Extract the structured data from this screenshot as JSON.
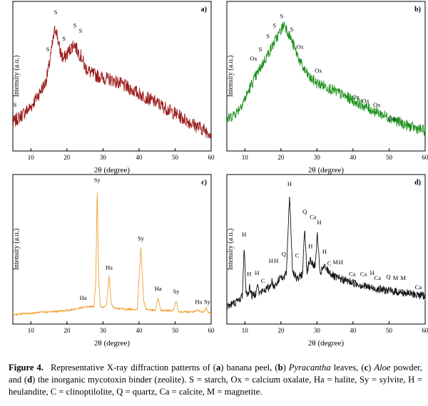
{
  "figure": {
    "caption": {
      "figure_label": "Figure 4.",
      "intro": "Representative X-ray diffraction patterns of (",
      "a": "a",
      "t1": ") banana peel, (",
      "b": "b",
      "t2": ") ",
      "pyr": "Pyracantha",
      "t3": " leaves, (",
      "c": "c",
      "t4": ") ",
      "aloe": "Aloe",
      "t5": " powder, and (",
      "d": "d",
      "t6": ") the inorganic mycotoxin binder (zeolite). S = starch, Ox = calcium oxalate, Ha = halite, Sy = sylvite, H = heulandite, C = clinoptilolite, Q = quartz, Ca = calcite, M = magnetite."
    }
  },
  "chart_data": [
    {
      "type": "line",
      "panel_label": "a)",
      "color": "#9b1b1b",
      "xlabel": "2θ (degree)",
      "ylabel": "Intensity (a.u.)",
      "xlim": [
        5,
        60
      ],
      "ylim": [
        0,
        100
      ],
      "xticks": [
        10,
        20,
        30,
        40,
        50,
        60
      ],
      "noise": 5,
      "series": [
        {
          "name": "banana peel",
          "x": [
            5,
            10,
            14,
            15,
            16,
            16.8,
            17.2,
            18,
            19,
            20,
            21,
            22,
            23,
            24,
            25,
            27,
            30,
            33,
            36,
            40,
            45,
            50,
            55,
            60
          ],
          "y": [
            18,
            30,
            48,
            60,
            78,
            90,
            86,
            73,
            66,
            70,
            74,
            78,
            72,
            68,
            60,
            55,
            52,
            50,
            46,
            40,
            33,
            25,
            17,
            10
          ]
        }
      ],
      "annotations": [
        {
          "text": "S",
          "x": 5.6,
          "y": 30
        },
        {
          "text": "S",
          "x": 14.7,
          "y": 72
        },
        {
          "text": "S",
          "x": 16.9,
          "y": 100
        },
        {
          "text": "S",
          "x": 19.2,
          "y": 80
        },
        {
          "text": "S",
          "x": 22.2,
          "y": 90
        },
        {
          "text": "S",
          "x": 23.8,
          "y": 86
        }
      ]
    },
    {
      "type": "line",
      "panel_label": "b)",
      "color": "#1a8f1a",
      "xlabel": "2θ (degree)",
      "ylabel": "Intensity (a.u.)",
      "xlim": [
        5,
        60
      ],
      "ylim": [
        0,
        100
      ],
      "xticks": [
        10,
        20,
        30,
        40,
        50,
        60
      ],
      "noise": 4,
      "series": [
        {
          "name": "Pyracantha leaves",
          "x": [
            5,
            8,
            10,
            12,
            14,
            16,
            18,
            20,
            21,
            22,
            23,
            24,
            26,
            28,
            30,
            32,
            35,
            40,
            45,
            50,
            55,
            60
          ],
          "y": [
            20,
            27,
            36,
            48,
            58,
            68,
            78,
            88,
            93,
            86,
            80,
            73,
            60,
            52,
            48,
            46,
            42,
            35,
            28,
            22,
            16,
            12
          ]
        }
      ],
      "annotations": [
        {
          "text": "Ox",
          "x": 12.4,
          "y": 65
        },
        {
          "text": "S",
          "x": 14.3,
          "y": 72
        },
        {
          "text": "S",
          "x": 16.4,
          "y": 82
        },
        {
          "text": "S",
          "x": 18.2,
          "y": 90
        },
        {
          "text": "S",
          "x": 20.2,
          "y": 97
        },
        {
          "text": "S",
          "x": 23.0,
          "y": 87
        },
        {
          "text": "Ox",
          "x": 25.3,
          "y": 74
        },
        {
          "text": "Ox",
          "x": 30.4,
          "y": 56
        },
        {
          "text": "Ox",
          "x": 40.8,
          "y": 36
        },
        {
          "text": "Ox",
          "x": 43.5,
          "y": 33
        },
        {
          "text": "Ox",
          "x": 46.6,
          "y": 30
        },
        {
          "text": "Ox",
          "x": 50.8,
          "y": 20
        }
      ]
    },
    {
      "type": "line",
      "panel_label": "c)",
      "color": "#f0a030",
      "xlabel": "2θ (degree)",
      "ylabel": "Intensity (a.u.)",
      "xlim": [
        5,
        60
      ],
      "ylim": [
        0,
        100
      ],
      "xticks": [
        10,
        20,
        30,
        40,
        50,
        60
      ],
      "noise": 0.8,
      "series": [
        {
          "name": "Aloe powder",
          "x": [
            5,
            10,
            15,
            20,
            24,
            26,
            27.5,
            28,
            28.4,
            28.8,
            29.3,
            30,
            31,
            31.7,
            32.3,
            33,
            36,
            39.5,
            40.5,
            41.3,
            42,
            44.5,
            45.3,
            46,
            49.5,
            50.3,
            51,
            55,
            56.5,
            57,
            58,
            58.7,
            59.2,
            60
          ],
          "y": [
            4,
            5,
            6,
            7,
            9,
            10,
            10,
            28,
            100,
            30,
            10,
            9,
            12,
            33,
            12,
            9,
            8,
            8,
            55,
            14,
            8,
            7,
            17,
            7,
            7,
            15,
            6,
            6,
            7,
            6,
            6,
            9,
            6,
            5
          ]
        }
      ],
      "annotations": [
        {
          "text": "Sy",
          "x": 28.4,
          "y": 104
        },
        {
          "text": "Ha",
          "x": 31.7,
          "y": 38
        },
        {
          "text": "Sy",
          "x": 40.5,
          "y": 60
        },
        {
          "text": "Ha",
          "x": 45.3,
          "y": 22
        },
        {
          "text": "Sy",
          "x": 50.3,
          "y": 20
        },
        {
          "text": "Ha",
          "x": 56.5,
          "y": 12
        },
        {
          "text": "Sy",
          "x": 58.9,
          "y": 12
        },
        {
          "text": "Ha",
          "x": 24.5,
          "y": 15
        }
      ]
    },
    {
      "type": "line",
      "panel_label": "d)",
      "color": "#111111",
      "xlabel": "2θ (degree)",
      "ylabel": "Intensity (a.u.)",
      "xlim": [
        5,
        60
      ],
      "ylim": [
        0,
        100
      ],
      "xticks": [
        10,
        20,
        30,
        40,
        50,
        60
      ],
      "noise": 3,
      "series": [
        {
          "name": "zeolite",
          "x": [
            5,
            8,
            9.3,
            9.8,
            10.3,
            11,
            11.2,
            12,
            13,
            13.4,
            14,
            17,
            17.4,
            18,
            19.5,
            19.9,
            20.5,
            21.5,
            22.4,
            23.2,
            24.5,
            26,
            26.6,
            27.2,
            28,
            29.5,
            30.1,
            30.8,
            32,
            35,
            40,
            45,
            50,
            55,
            60
          ],
          "y": [
            10,
            14,
            18,
            55,
            22,
            18,
            26,
            18,
            20,
            28,
            20,
            25,
            30,
            25,
            30,
            35,
            30,
            35,
            95,
            38,
            30,
            35,
            70,
            36,
            45,
            40,
            65,
            35,
            40,
            32,
            28,
            24,
            22,
            20,
            18
          ]
        }
      ],
      "annotations": [
        {
          "text": "H",
          "x": 9.8,
          "y": 63
        },
        {
          "text": "H",
          "x": 11.2,
          "y": 33
        },
        {
          "text": "H",
          "x": 13.4,
          "y": 34
        },
        {
          "text": "C",
          "x": 15.0,
          "y": 28
        },
        {
          "text": "H",
          "x": 17.2,
          "y": 43
        },
        {
          "text": "H",
          "x": 18.7,
          "y": 43
        },
        {
          "text": "Q",
          "x": 20.8,
          "y": 48
        },
        {
          "text": "H",
          "x": 22.4,
          "y": 101
        },
        {
          "text": "C",
          "x": 24.5,
          "y": 47
        },
        {
          "text": "Q",
          "x": 26.6,
          "y": 80
        },
        {
          "text": "Ca",
          "x": 28.9,
          "y": 76
        },
        {
          "text": "H",
          "x": 30.6,
          "y": 72
        },
        {
          "text": "H",
          "x": 28.2,
          "y": 54
        },
        {
          "text": "H",
          "x": 32.1,
          "y": 50
        },
        {
          "text": "C",
          "x": 33.4,
          "y": 41
        },
        {
          "text": "M",
          "x": 35.1,
          "y": 42
        },
        {
          "text": "H",
          "x": 36.6,
          "y": 42
        },
        {
          "text": "Ca",
          "x": 39.8,
          "y": 33
        },
        {
          "text": "Ca",
          "x": 42.9,
          "y": 33
        },
        {
          "text": "H",
          "x": 45.3,
          "y": 34
        },
        {
          "text": "Ca",
          "x": 46.8,
          "y": 30
        },
        {
          "text": "Q",
          "x": 49.8,
          "y": 31
        },
        {
          "text": "M",
          "x": 51.8,
          "y": 30
        },
        {
          "text": "M",
          "x": 53.9,
          "y": 30
        },
        {
          "text": "Ca",
          "x": 58.1,
          "y": 23
        }
      ]
    }
  ]
}
